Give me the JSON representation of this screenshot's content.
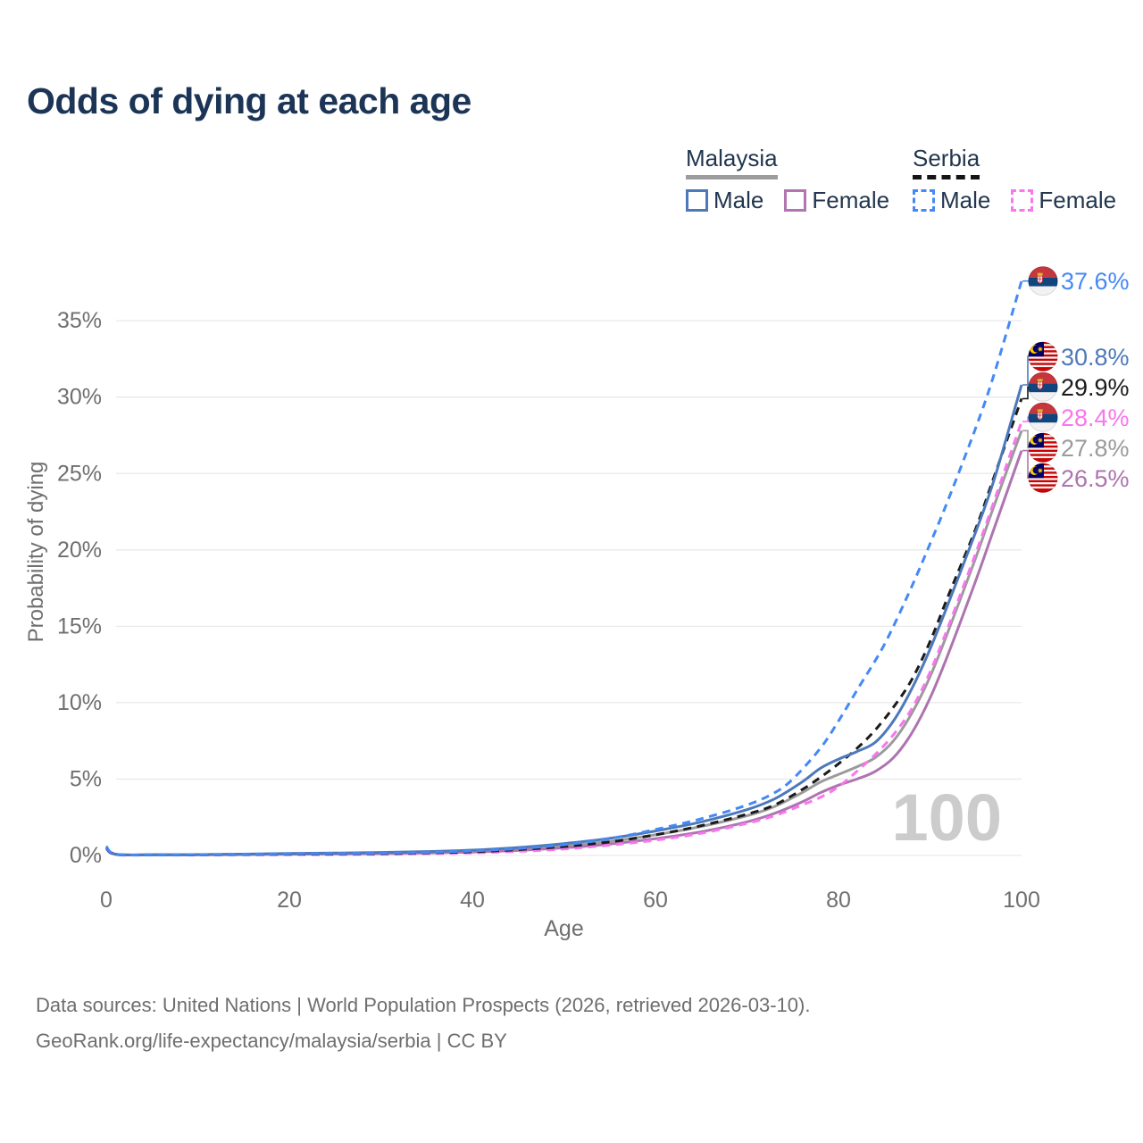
{
  "title": "Odds of dying at each age",
  "watermark": "100",
  "legend": {
    "groups": [
      {
        "title": "Malaysia",
        "line_style": "solid",
        "underline_color": "#9c9c9c",
        "items": [
          {
            "label": "Male",
            "color": "#4d79bb",
            "dashed": false
          },
          {
            "label": "Female",
            "color": "#b175b0",
            "dashed": false
          }
        ]
      },
      {
        "title": "Serbia",
        "line_style": "dashed",
        "underline_color": "#151515",
        "items": [
          {
            "label": "Male",
            "color": "#4489f6",
            "dashed": true
          },
          {
            "label": "Female",
            "color": "#fa75ee",
            "dashed": true
          }
        ]
      }
    ]
  },
  "chart_data": {
    "type": "line",
    "title": "Odds of dying at each age",
    "xlabel": "Age",
    "ylabel": "Probability of dying",
    "xlim": [
      0,
      100
    ],
    "ylim_pct": [
      0,
      38
    ],
    "xticks": [
      "0",
      "20",
      "40",
      "60",
      "80",
      "100"
    ],
    "ytick_labels": [
      "0%",
      "5%",
      "10%",
      "15%",
      "20%",
      "25%",
      "30%",
      "35%"
    ],
    "grid": "horizontal",
    "legend_position": "top-right",
    "series": [
      {
        "name": "Malaysia (combined)",
        "country": "Malaysia",
        "sex": "combined",
        "flag_icon": "malaysia-flag-icon",
        "color": "#9b9b9b",
        "dashed": false,
        "end_label": "27.8%",
        "end_value_pct": 27.8,
        "points": [
          [
            0,
            0.55
          ],
          [
            1,
            0.08
          ],
          [
            5,
            0.04
          ],
          [
            10,
            0.05
          ],
          [
            15,
            0.07
          ],
          [
            20,
            0.1
          ],
          [
            25,
            0.13
          ],
          [
            30,
            0.16
          ],
          [
            35,
            0.21
          ],
          [
            40,
            0.28
          ],
          [
            45,
            0.42
          ],
          [
            50,
            0.62
          ],
          [
            55,
            0.92
          ],
          [
            60,
            1.35
          ],
          [
            65,
            1.9
          ],
          [
            70,
            2.6
          ],
          [
            73,
            3.2
          ],
          [
            76,
            4.1
          ],
          [
            78,
            4.8
          ],
          [
            80,
            5.3
          ],
          [
            82,
            5.8
          ],
          [
            84,
            6.4
          ],
          [
            86,
            7.5
          ],
          [
            88,
            9.3
          ],
          [
            90,
            11.7
          ],
          [
            92,
            14.7
          ],
          [
            95,
            19.5
          ],
          [
            97,
            22.9
          ],
          [
            100,
            27.8
          ]
        ]
      },
      {
        "name": "Malaysia Female",
        "country": "Malaysia",
        "sex": "female",
        "flag_icon": "malaysia-flag-icon",
        "color": "#ad74af",
        "dashed": false,
        "end_label": "26.5%",
        "end_value_pct": 26.5,
        "points": [
          [
            0,
            0.5
          ],
          [
            1,
            0.07
          ],
          [
            5,
            0.035
          ],
          [
            10,
            0.04
          ],
          [
            15,
            0.06
          ],
          [
            20,
            0.08
          ],
          [
            25,
            0.1
          ],
          [
            30,
            0.12
          ],
          [
            35,
            0.16
          ],
          [
            40,
            0.22
          ],
          [
            45,
            0.33
          ],
          [
            50,
            0.5
          ],
          [
            55,
            0.75
          ],
          [
            60,
            1.1
          ],
          [
            65,
            1.55
          ],
          [
            70,
            2.2
          ],
          [
            73,
            2.75
          ],
          [
            76,
            3.5
          ],
          [
            78,
            4.1
          ],
          [
            80,
            4.6
          ],
          [
            82,
            5.0
          ],
          [
            84,
            5.5
          ],
          [
            86,
            6.4
          ],
          [
            88,
            8.0
          ],
          [
            90,
            10.3
          ],
          [
            92,
            13.2
          ],
          [
            95,
            18.0
          ],
          [
            97,
            21.4
          ],
          [
            100,
            26.5
          ]
        ]
      },
      {
        "name": "Serbia Female",
        "country": "Serbia",
        "sex": "female",
        "flag_icon": "serbia-flag-icon",
        "color": "#fa75ee",
        "dashed": true,
        "end_label": "28.4%",
        "end_value_pct": 28.4,
        "points": [
          [
            0,
            0.45
          ],
          [
            1,
            0.06
          ],
          [
            5,
            0.03
          ],
          [
            10,
            0.03
          ],
          [
            15,
            0.04
          ],
          [
            20,
            0.05
          ],
          [
            25,
            0.06
          ],
          [
            30,
            0.08
          ],
          [
            35,
            0.12
          ],
          [
            40,
            0.17
          ],
          [
            45,
            0.27
          ],
          [
            50,
            0.42
          ],
          [
            55,
            0.68
          ],
          [
            60,
            1.0
          ],
          [
            65,
            1.45
          ],
          [
            70,
            2.1
          ],
          [
            73,
            2.6
          ],
          [
            76,
            3.3
          ],
          [
            78,
            3.8
          ],
          [
            80,
            4.5
          ],
          [
            82,
            5.5
          ],
          [
            84,
            6.6
          ],
          [
            86,
            7.9
          ],
          [
            88,
            9.6
          ],
          [
            90,
            12.0
          ],
          [
            92,
            15.0
          ],
          [
            95,
            19.8
          ],
          [
            97,
            23.2
          ],
          [
            100,
            28.4
          ]
        ]
      },
      {
        "name": "Serbia (combined)",
        "country": "Serbia",
        "sex": "combined",
        "flag_icon": "serbia-flag-icon",
        "color": "#1b1b1b",
        "dashed": true,
        "end_label": "29.9%",
        "end_value_pct": 29.9,
        "points": [
          [
            0,
            0.5
          ],
          [
            1,
            0.07
          ],
          [
            5,
            0.035
          ],
          [
            10,
            0.04
          ],
          [
            15,
            0.06
          ],
          [
            20,
            0.08
          ],
          [
            25,
            0.1
          ],
          [
            30,
            0.12
          ],
          [
            35,
            0.17
          ],
          [
            40,
            0.24
          ],
          [
            45,
            0.38
          ],
          [
            50,
            0.58
          ],
          [
            55,
            0.88
          ],
          [
            60,
            1.35
          ],
          [
            65,
            1.95
          ],
          [
            70,
            2.7
          ],
          [
            73,
            3.3
          ],
          [
            76,
            4.3
          ],
          [
            78,
            5.1
          ],
          [
            80,
            6.0
          ],
          [
            82,
            7.0
          ],
          [
            84,
            8.2
          ],
          [
            86,
            9.7
          ],
          [
            88,
            11.5
          ],
          [
            90,
            14.0
          ],
          [
            92,
            17.0
          ],
          [
            95,
            21.4
          ],
          [
            97,
            24.8
          ],
          [
            100,
            29.9
          ]
        ]
      },
      {
        "name": "Malaysia Male",
        "country": "Malaysia",
        "sex": "male",
        "flag_icon": "malaysia-flag-icon",
        "color": "#4d79bb",
        "dashed": false,
        "end_label": "30.8%",
        "end_value_pct": 30.8,
        "points": [
          [
            0,
            0.6
          ],
          [
            1,
            0.09
          ],
          [
            5,
            0.05
          ],
          [
            10,
            0.06
          ],
          [
            15,
            0.09
          ],
          [
            20,
            0.13
          ],
          [
            25,
            0.16
          ],
          [
            30,
            0.2
          ],
          [
            35,
            0.26
          ],
          [
            40,
            0.35
          ],
          [
            45,
            0.52
          ],
          [
            50,
            0.78
          ],
          [
            55,
            1.12
          ],
          [
            60,
            1.6
          ],
          [
            65,
            2.2
          ],
          [
            70,
            3.0
          ],
          [
            73,
            3.7
          ],
          [
            76,
            4.8
          ],
          [
            78,
            5.7
          ],
          [
            80,
            6.3
          ],
          [
            82,
            6.8
          ],
          [
            84,
            7.4
          ],
          [
            86,
            8.8
          ],
          [
            88,
            10.9
          ],
          [
            90,
            13.5
          ],
          [
            92,
            16.5
          ],
          [
            95,
            21.2
          ],
          [
            97,
            24.6
          ],
          [
            100,
            30.8
          ]
        ]
      },
      {
        "name": "Serbia Male",
        "country": "Serbia",
        "sex": "male",
        "flag_icon": "serbia-flag-icon",
        "color": "#4489f6",
        "dashed": true,
        "end_label": "37.6%",
        "end_value_pct": 37.6,
        "points": [
          [
            0,
            0.55
          ],
          [
            1,
            0.08
          ],
          [
            5,
            0.04
          ],
          [
            10,
            0.05
          ],
          [
            15,
            0.07
          ],
          [
            20,
            0.1
          ],
          [
            25,
            0.12
          ],
          [
            30,
            0.15
          ],
          [
            35,
            0.2
          ],
          [
            40,
            0.3
          ],
          [
            45,
            0.45
          ],
          [
            50,
            0.7
          ],
          [
            55,
            1.1
          ],
          [
            60,
            1.7
          ],
          [
            65,
            2.4
          ],
          [
            70,
            3.3
          ],
          [
            73,
            4.1
          ],
          [
            75,
            5.0
          ],
          [
            78,
            7.0
          ],
          [
            80,
            8.8
          ],
          [
            82,
            10.8
          ],
          [
            85,
            13.8
          ],
          [
            88,
            17.6
          ],
          [
            90,
            20.4
          ],
          [
            92,
            23.3
          ],
          [
            95,
            28.0
          ],
          [
            97,
            31.5
          ],
          [
            100,
            37.6
          ]
        ]
      }
    ]
  },
  "footer": {
    "line1": "Data sources: United Nations | World Population Prospects (2026, retrieved 2026-03-10).",
    "line2": "GeoRank.org/life-expectancy/malaysia/serbia | CC BY"
  }
}
